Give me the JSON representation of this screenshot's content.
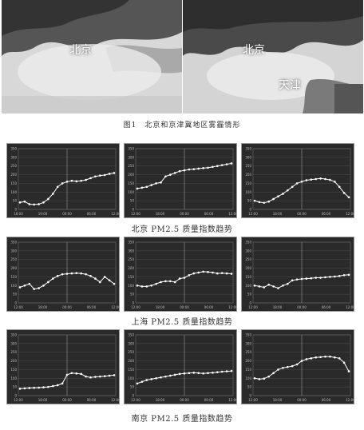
{
  "figure": {
    "label_beijing": "北京",
    "label_tianjin": "天津",
    "caption": "图1　北京和京津冀地区雾霾情形"
  },
  "rows": [
    {
      "title": "北京 PM2.5 质量指数趋势"
    },
    {
      "title": "上海 PM2.5 质量指数趋势"
    },
    {
      "title": "南京 PM2.5 质量指数趋势"
    }
  ],
  "chart_data": [
    {
      "type": "line",
      "city": "北京",
      "ylim": [
        0,
        350
      ],
      "y_ticks": [
        0,
        50,
        100,
        150,
        200,
        250,
        300,
        350
      ],
      "x_ticks": [
        "18:00",
        "19:00",
        "00:00",
        "06:00",
        "12:00"
      ],
      "values": [
        40,
        45,
        30,
        28,
        30,
        40,
        60,
        90,
        130,
        150,
        160,
        165,
        162,
        165,
        170,
        180,
        190,
        195,
        198,
        205,
        210
      ]
    },
    {
      "type": "line",
      "city": "北京",
      "ylim": [
        0,
        350
      ],
      "y_ticks": [
        0,
        50,
        100,
        150,
        200,
        250,
        300,
        350
      ],
      "x_ticks": [
        "12:00",
        "18:00",
        "00:00",
        "06:00",
        "12:00"
      ],
      "values": [
        120,
        125,
        130,
        140,
        150,
        155,
        190,
        200,
        210,
        220,
        225,
        230,
        232,
        235,
        238,
        240,
        245,
        250,
        255,
        260,
        265
      ]
    },
    {
      "type": "line",
      "city": "北京",
      "ylim": [
        0,
        350
      ],
      "y_ticks": [
        0,
        50,
        100,
        150,
        200,
        250,
        300,
        350
      ],
      "x_ticks": [
        "12:00",
        "18:00",
        "00:00",
        "06:00",
        "12:00"
      ],
      "values": [
        50,
        42,
        38,
        45,
        60,
        75,
        90,
        110,
        130,
        150,
        160,
        168,
        172,
        175,
        178,
        175,
        170,
        160,
        130,
        95,
        70
      ]
    },
    {
      "type": "line",
      "city": "上海",
      "ylim": [
        0,
        350
      ],
      "y_ticks": [
        0,
        50,
        100,
        150,
        200,
        250,
        300,
        350
      ],
      "x_ticks": [
        "12:00",
        "18:00",
        "00:00",
        "06:00",
        "12:00"
      ],
      "values": [
        90,
        100,
        110,
        80,
        85,
        100,
        120,
        140,
        155,
        165,
        168,
        170,
        172,
        170,
        165,
        155,
        140,
        120,
        150,
        130,
        110
      ]
    },
    {
      "type": "line",
      "city": "上海",
      "ylim": [
        0,
        350
      ],
      "y_ticks": [
        0,
        50,
        100,
        150,
        200,
        250,
        300,
        350
      ],
      "x_ticks": [
        "12:00",
        "18:00",
        "00:00",
        "06:00",
        "12:00"
      ],
      "values": [
        100,
        95,
        95,
        100,
        110,
        120,
        125,
        125,
        120,
        140,
        145,
        160,
        170,
        175,
        180,
        178,
        175,
        170,
        172,
        170,
        168
      ]
    },
    {
      "type": "line",
      "city": "上海",
      "ylim": [
        0,
        350
      ],
      "y_ticks": [
        0,
        50,
        100,
        150,
        200,
        250,
        300,
        350
      ],
      "x_ticks": [
        "12:00",
        "18:00",
        "00:00",
        "06:00",
        "12:00"
      ],
      "values": [
        100,
        95,
        90,
        105,
        95,
        85,
        100,
        110,
        130,
        135,
        138,
        140,
        142,
        145,
        145,
        148,
        150,
        152,
        155,
        160,
        162
      ]
    },
    {
      "type": "line",
      "city": "南京",
      "ylim": [
        0,
        350
      ],
      "y_ticks": [
        0,
        50,
        100,
        150,
        200,
        250,
        300,
        350
      ],
      "x_ticks": [
        "12:00",
        "18:00",
        "00:00",
        "06:00",
        "12:00"
      ],
      "values": [
        40,
        42,
        44,
        45,
        46,
        48,
        50,
        55,
        60,
        70,
        120,
        130,
        128,
        125,
        110,
        105,
        108,
        110,
        112,
        115,
        118
      ]
    },
    {
      "type": "line",
      "city": "南京",
      "ylim": [
        0,
        350
      ],
      "y_ticks": [
        0,
        50,
        100,
        150,
        200,
        250,
        300,
        350
      ],
      "x_ticks": [
        "12:00",
        "18:00",
        "00:00",
        "06:00",
        "12:00"
      ],
      "values": [
        70,
        80,
        90,
        95,
        100,
        105,
        110,
        115,
        120,
        125,
        128,
        130,
        132,
        130,
        128,
        130,
        132,
        135,
        138,
        140,
        142
      ]
    },
    {
      "type": "line",
      "city": "南京",
      "ylim": [
        0,
        350
      ],
      "y_ticks": [
        0,
        50,
        100,
        150,
        200,
        250,
        300,
        350
      ],
      "x_ticks": [
        "12:00",
        "18:00",
        "00:00",
        "06:00",
        "12:00"
      ],
      "values": [
        100,
        95,
        98,
        110,
        130,
        150,
        160,
        165,
        170,
        180,
        200,
        210,
        215,
        220,
        222,
        225,
        225,
        220,
        215,
        190,
        140
      ]
    }
  ]
}
